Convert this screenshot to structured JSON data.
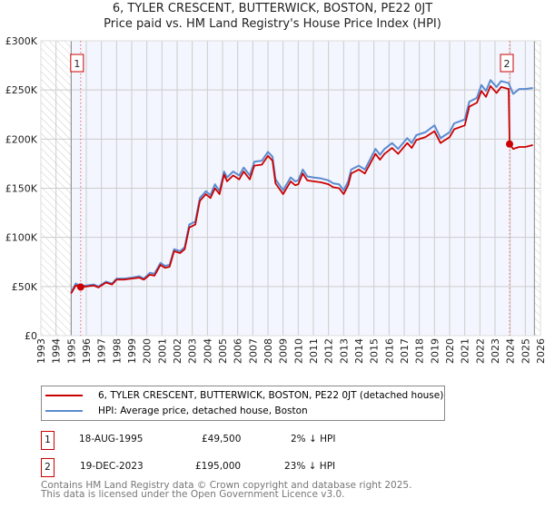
{
  "chart_data": {
    "type": "line",
    "title": "6, TYLER CRESCENT, BUTTERWICK, BOSTON, PE22 0JT",
    "subtitle": "Price paid vs. HM Land Registry's House Price Index (HPI)",
    "xlim": [
      1993,
      2026
    ],
    "ylim": [
      0,
      300000
    ],
    "x_ticks": [
      "1993",
      "1994",
      "1995",
      "1996",
      "1997",
      "1998",
      "1999",
      "2000",
      "2001",
      "2002",
      "2003",
      "2004",
      "2005",
      "2006",
      "2007",
      "2008",
      "2009",
      "2010",
      "2011",
      "2012",
      "2013",
      "2014",
      "2015",
      "2016",
      "2017",
      "2018",
      "2019",
      "2020",
      "2021",
      "2022",
      "2023",
      "2024",
      "2025",
      "2026"
    ],
    "y_ticks": [
      {
        "v": 0,
        "label": "£0"
      },
      {
        "v": 50000,
        "label": "£50K"
      },
      {
        "v": 100000,
        "label": "£100K"
      },
      {
        "v": 150000,
        "label": "£150K"
      },
      {
        "v": 200000,
        "label": "£200K"
      },
      {
        "v": 250000,
        "label": "£250K"
      },
      {
        "v": 300000,
        "label": "£300K"
      }
    ],
    "grid": true,
    "data_range": [
      1995,
      2025.6
    ],
    "series": [
      {
        "name": "6, TYLER CRESCENT, BUTTERWICK, BOSTON, PE22 0JT (detached house)",
        "color": "#cc0000",
        "points": [
          [
            1995.0,
            43000
          ],
          [
            1995.3,
            51000
          ],
          [
            1995.63,
            49500
          ],
          [
            1996,
            50000
          ],
          [
            1996.5,
            51000
          ],
          [
            1996.8,
            49000
          ],
          [
            1997.3,
            54000
          ],
          [
            1997.7,
            52000
          ],
          [
            1998,
            57000
          ],
          [
            1998.5,
            57000
          ],
          [
            1999,
            58000
          ],
          [
            1999.5,
            59000
          ],
          [
            1999.8,
            57000
          ],
          [
            2000.2,
            62000
          ],
          [
            2000.5,
            61000
          ],
          [
            2000.9,
            72000
          ],
          [
            2001.2,
            69000
          ],
          [
            2001.5,
            70000
          ],
          [
            2001.8,
            86000
          ],
          [
            2002.2,
            84000
          ],
          [
            2002.5,
            88000
          ],
          [
            2002.8,
            110000
          ],
          [
            2003.2,
            113000
          ],
          [
            2003.5,
            137000
          ],
          [
            2003.9,
            144000
          ],
          [
            2004.2,
            140000
          ],
          [
            2004.5,
            150000
          ],
          [
            2004.8,
            144000
          ],
          [
            2005.1,
            164000
          ],
          [
            2005.3,
            157000
          ],
          [
            2005.7,
            163000
          ],
          [
            2006.1,
            159000
          ],
          [
            2006.4,
            167000
          ],
          [
            2006.8,
            159000
          ],
          [
            2007.1,
            173000
          ],
          [
            2007.6,
            174000
          ],
          [
            2008,
            183000
          ],
          [
            2008.3,
            178000
          ],
          [
            2008.5,
            155000
          ],
          [
            2009,
            144000
          ],
          [
            2009.5,
            157000
          ],
          [
            2009.8,
            153000
          ],
          [
            2010,
            154000
          ],
          [
            2010.3,
            165000
          ],
          [
            2010.6,
            158000
          ],
          [
            2011,
            157000
          ],
          [
            2011.5,
            156000
          ],
          [
            2012,
            154000
          ],
          [
            2012.3,
            151000
          ],
          [
            2012.7,
            150000
          ],
          [
            2013,
            144000
          ],
          [
            2013.3,
            153000
          ],
          [
            2013.5,
            165000
          ],
          [
            2014,
            169000
          ],
          [
            2014.4,
            165000
          ],
          [
            2015.1,
            185000
          ],
          [
            2015.4,
            179000
          ],
          [
            2015.7,
            185000
          ],
          [
            2016.2,
            191000
          ],
          [
            2016.6,
            185000
          ],
          [
            2017.2,
            196000
          ],
          [
            2017.5,
            191000
          ],
          [
            2017.8,
            199000
          ],
          [
            2018.4,
            202000
          ],
          [
            2019,
            208000
          ],
          [
            2019.4,
            196000
          ],
          [
            2020,
            202000
          ],
          [
            2020.3,
            210000
          ],
          [
            2021,
            214000
          ],
          [
            2021.3,
            233000
          ],
          [
            2021.8,
            237000
          ],
          [
            2022.1,
            249000
          ],
          [
            2022.4,
            243000
          ],
          [
            2022.7,
            254000
          ],
          [
            2023.1,
            247000
          ],
          [
            2023.4,
            253000
          ],
          [
            2023.9,
            251000
          ],
          [
            2023.96,
            195000
          ],
          [
            2024.2,
            190000
          ],
          [
            2024.6,
            192000
          ],
          [
            2025,
            192000
          ],
          [
            2025.5,
            194000
          ]
        ]
      },
      {
        "name": "HPI: Average price, detached house, Boston",
        "color": "#5b8bd0",
        "points": [
          [
            1995.0,
            44000
          ],
          [
            1995.3,
            53000
          ],
          [
            1995.63,
            50500
          ],
          [
            1996,
            51000
          ],
          [
            1996.5,
            52000
          ],
          [
            1996.8,
            50000
          ],
          [
            1997.3,
            55000
          ],
          [
            1997.7,
            53000
          ],
          [
            1998,
            58000
          ],
          [
            1998.5,
            58000
          ],
          [
            1999,
            59000
          ],
          [
            1999.5,
            60500
          ],
          [
            1999.8,
            58000
          ],
          [
            2000.2,
            64000
          ],
          [
            2000.5,
            63000
          ],
          [
            2000.9,
            74000
          ],
          [
            2001.2,
            71000
          ],
          [
            2001.5,
            72000
          ],
          [
            2001.8,
            88000
          ],
          [
            2002.2,
            86000
          ],
          [
            2002.5,
            90000
          ],
          [
            2002.8,
            113000
          ],
          [
            2003.2,
            116000
          ],
          [
            2003.5,
            140000
          ],
          [
            2003.9,
            147000
          ],
          [
            2004.2,
            143000
          ],
          [
            2004.5,
            154000
          ],
          [
            2004.8,
            147000
          ],
          [
            2005.1,
            167000
          ],
          [
            2005.3,
            161000
          ],
          [
            2005.7,
            167000
          ],
          [
            2006.1,
            163000
          ],
          [
            2006.4,
            171000
          ],
          [
            2006.8,
            163000
          ],
          [
            2007.1,
            177000
          ],
          [
            2007.6,
            178000
          ],
          [
            2008,
            187000
          ],
          [
            2008.3,
            182000
          ],
          [
            2008.5,
            159000
          ],
          [
            2009,
            148000
          ],
          [
            2009.5,
            161000
          ],
          [
            2009.8,
            157000
          ],
          [
            2010,
            158000
          ],
          [
            2010.3,
            169000
          ],
          [
            2010.6,
            162000
          ],
          [
            2011,
            161000
          ],
          [
            2011.5,
            160000
          ],
          [
            2012,
            158000
          ],
          [
            2012.3,
            155000
          ],
          [
            2012.7,
            154000
          ],
          [
            2013,
            148000
          ],
          [
            2013.3,
            157000
          ],
          [
            2013.5,
            169000
          ],
          [
            2014,
            173000
          ],
          [
            2014.4,
            169000
          ],
          [
            2015.1,
            190000
          ],
          [
            2015.4,
            184000
          ],
          [
            2015.7,
            190000
          ],
          [
            2016.2,
            196000
          ],
          [
            2016.6,
            190000
          ],
          [
            2017.2,
            201000
          ],
          [
            2017.5,
            196000
          ],
          [
            2017.8,
            204000
          ],
          [
            2018.4,
            207000
          ],
          [
            2019,
            214000
          ],
          [
            2019.4,
            201000
          ],
          [
            2020,
            207000
          ],
          [
            2020.3,
            216000
          ],
          [
            2021,
            220000
          ],
          [
            2021.3,
            238000
          ],
          [
            2021.8,
            242000
          ],
          [
            2022.1,
            255000
          ],
          [
            2022.4,
            249000
          ],
          [
            2022.7,
            260000
          ],
          [
            2023.1,
            253000
          ],
          [
            2023.4,
            259000
          ],
          [
            2023.9,
            257000
          ],
          [
            2024.2,
            246000
          ],
          [
            2024.6,
            251000
          ],
          [
            2025,
            251000
          ],
          [
            2025.5,
            252000
          ]
        ]
      }
    ],
    "annotations": [
      {
        "label": "1",
        "x": 1995.63,
        "y": 49500
      },
      {
        "label": "2",
        "x": 2023.96,
        "y": 195000
      }
    ]
  },
  "legend": {
    "red": "6, TYLER CRESCENT, BUTTERWICK, BOSTON, PE22 0JT (detached house)",
    "blue": "HPI: Average price, detached house, Boston"
  },
  "sales": [
    {
      "num": "1",
      "date": "18-AUG-1995",
      "price": "£49,500",
      "diff": "2% ↓ HPI"
    },
    {
      "num": "2",
      "date": "19-DEC-2023",
      "price": "£195,000",
      "diff": "23% ↓ HPI"
    }
  ],
  "footer": {
    "line1": "Contains HM Land Registry data © Crown copyright and database right 2025.",
    "line2": "This data is licensed under the Open Government Licence v3.0."
  }
}
